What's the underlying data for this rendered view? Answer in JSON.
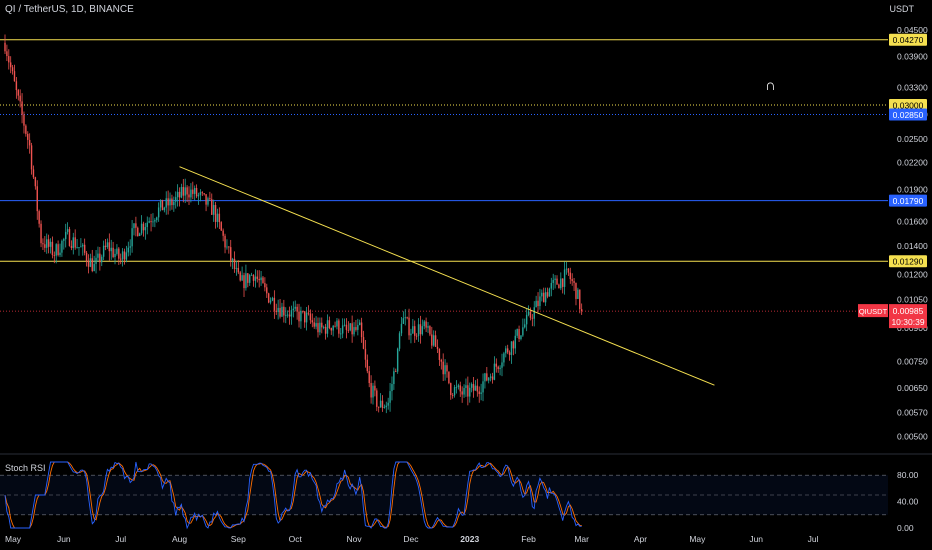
{
  "header": {
    "title": "QI / TetherUS, 1D, BINANCE",
    "unit": "USDT"
  },
  "rsi_panel": {
    "title": "Stoch RSI"
  },
  "colors": {
    "background": "#000000",
    "up": "#26a69a",
    "down": "#ef5350",
    "yellow_line": "#f5e050",
    "blue_line": "#2962ff",
    "current_price": "#f23645",
    "rsi_k": "#2962ff",
    "rsi_d": "#ff6d00",
    "axis_text": "#d1d4dc"
  },
  "icons": {
    "magnet": "magnet-icon"
  },
  "chart_data": [
    {
      "type": "candlestick",
      "symbol": "QIUSDT",
      "interval": "1D",
      "y_axis_ticks": [
        "0.04500",
        "0.03900",
        "0.03300",
        "0.02850",
        "0.02500",
        "0.02200",
        "0.01900",
        "0.01600",
        "0.01400",
        "0.01200",
        "0.01050",
        "0.00900",
        "0.00750",
        "0.00650",
        "0.00570",
        "0.00500"
      ],
      "x_axis_ticks": [
        "May",
        "Jun",
        "Jul",
        "Aug",
        "Sep",
        "Oct",
        "Nov",
        "Dec",
        "2023",
        "Feb",
        "Mar",
        "Apr",
        "May",
        "Jun",
        "Jul"
      ],
      "x_range": [
        "2022-05-01",
        "2023-07-31"
      ],
      "y_range": [
        0.0046,
        0.0475
      ],
      "y_scale": "log",
      "current_price": {
        "label": "QIUSDT",
        "value": "0.00985",
        "countdown": "10:30:39"
      },
      "horizontal_levels": [
        {
          "value": "0.04270",
          "style": "solid",
          "color": "yellow"
        },
        {
          "value": "0.03000",
          "style": "dotted",
          "color": "yellow"
        },
        {
          "value": "0.02850",
          "style": "dotted",
          "color": "blue"
        },
        {
          "value": "0.01790",
          "style": "solid",
          "color": "blue"
        },
        {
          "value": "0.01290",
          "style": "solid",
          "color": "yellow"
        }
      ],
      "trendline": {
        "start": [
          "2022-08-01",
          0.0215
        ],
        "end": [
          "2023-05-10",
          0.0066
        ]
      },
      "price_series": [
        [
          "2022-05-01",
          0.042
        ],
        [
          "2022-05-07",
          0.032
        ],
        [
          "2022-05-14",
          0.024
        ],
        [
          "2022-05-20",
          0.0145
        ],
        [
          "2022-05-27",
          0.0135
        ],
        [
          "2022-06-03",
          0.0148
        ],
        [
          "2022-06-10",
          0.0138
        ],
        [
          "2022-06-17",
          0.0125
        ],
        [
          "2022-06-24",
          0.014
        ],
        [
          "2022-07-01",
          0.013
        ],
        [
          "2022-07-08",
          0.0152
        ],
        [
          "2022-07-15",
          0.016
        ],
        [
          "2022-07-22",
          0.0172
        ],
        [
          "2022-07-29",
          0.0178
        ],
        [
          "2022-08-05",
          0.019
        ],
        [
          "2022-08-12",
          0.0182
        ],
        [
          "2022-08-19",
          0.017
        ],
        [
          "2022-08-26",
          0.0138
        ],
        [
          "2022-09-02",
          0.0114
        ],
        [
          "2022-09-09",
          0.0121
        ],
        [
          "2022-09-16",
          0.0108
        ],
        [
          "2022-09-23",
          0.01
        ],
        [
          "2022-09-30",
          0.0097
        ],
        [
          "2022-10-07",
          0.0095
        ],
        [
          "2022-10-14",
          0.0089
        ],
        [
          "2022-10-21",
          0.0092
        ],
        [
          "2022-10-28",
          0.0088
        ],
        [
          "2022-11-04",
          0.0089
        ],
        [
          "2022-11-09",
          0.0066
        ],
        [
          "2022-11-14",
          0.0059
        ],
        [
          "2022-11-19",
          0.006
        ],
        [
          "2022-11-24",
          0.0078
        ],
        [
          "2022-11-26",
          0.0095
        ],
        [
          "2022-12-01",
          0.0089
        ],
        [
          "2022-12-08",
          0.009
        ],
        [
          "2022-12-15",
          0.008
        ],
        [
          "2022-12-22",
          0.0065
        ],
        [
          "2022-12-29",
          0.0063
        ],
        [
          "2023-01-05",
          0.0065
        ],
        [
          "2023-01-12",
          0.007
        ],
        [
          "2023-01-19",
          0.0078
        ],
        [
          "2023-01-26",
          0.0086
        ],
        [
          "2023-02-02",
          0.0096
        ],
        [
          "2023-02-09",
          0.0108
        ],
        [
          "2023-02-16",
          0.0115
        ],
        [
          "2023-02-22",
          0.012
        ],
        [
          "2023-02-26",
          0.011
        ],
        [
          "2023-03-01",
          0.00985
        ]
      ]
    },
    {
      "type": "line",
      "title": "Stoch RSI",
      "y_axis_ticks": [
        "80.00",
        "40.00",
        "0.00"
      ],
      "y_range": [
        0,
        100
      ],
      "bands": [
        80,
        50,
        20
      ]
    }
  ]
}
